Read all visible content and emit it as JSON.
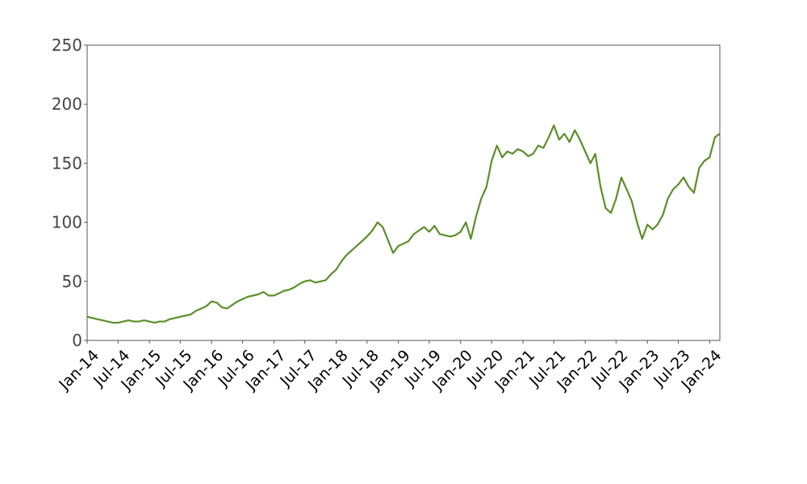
{
  "chart_data": {
    "type": "line",
    "title": "",
    "xlabel": "",
    "ylabel": "",
    "ylim": [
      0,
      250
    ],
    "yticks": [
      0,
      50,
      100,
      150,
      200,
      250
    ],
    "xlim": [
      "2014-01-01",
      "2024-03-01"
    ],
    "xticks": [
      {
        "date": "2014-01-01",
        "label": "Jan-14"
      },
      {
        "date": "2014-07-01",
        "label": "Jul-14"
      },
      {
        "date": "2015-01-01",
        "label": "Jan-15"
      },
      {
        "date": "2015-07-01",
        "label": "Jul-15"
      },
      {
        "date": "2016-01-01",
        "label": "Jan-16"
      },
      {
        "date": "2016-07-01",
        "label": "Jul-16"
      },
      {
        "date": "2017-01-01",
        "label": "Jan-17"
      },
      {
        "date": "2017-07-01",
        "label": "Jul-17"
      },
      {
        "date": "2018-01-01",
        "label": "Jan-18"
      },
      {
        "date": "2018-07-01",
        "label": "Jul-18"
      },
      {
        "date": "2019-01-01",
        "label": "Jan-19"
      },
      {
        "date": "2019-07-01",
        "label": "Jul-19"
      },
      {
        "date": "2020-01-01",
        "label": "Jan-20"
      },
      {
        "date": "2020-07-01",
        "label": "Jul-20"
      },
      {
        "date": "2021-01-01",
        "label": "Jan-21"
      },
      {
        "date": "2021-07-01",
        "label": "Jul-21"
      },
      {
        "date": "2022-01-01",
        "label": "Jan-22"
      },
      {
        "date": "2022-07-01",
        "label": "Jul-22"
      },
      {
        "date": "2023-01-01",
        "label": "Jan-23"
      },
      {
        "date": "2023-07-01",
        "label": "Jul-23"
      },
      {
        "date": "2024-01-01",
        "label": "Jan-24"
      }
    ],
    "grid": false,
    "legend": "none",
    "series": [
      {
        "color": "#5a8f29",
        "points": [
          [
            "2014-01-01",
            20
          ],
          [
            "2014-02-01",
            19
          ],
          [
            "2014-03-01",
            18
          ],
          [
            "2014-04-01",
            17
          ],
          [
            "2014-05-01",
            16
          ],
          [
            "2014-06-01",
            15
          ],
          [
            "2014-07-01",
            15
          ],
          [
            "2014-08-01",
            16
          ],
          [
            "2014-09-01",
            17
          ],
          [
            "2014-10-01",
            16
          ],
          [
            "2014-11-01",
            16
          ],
          [
            "2014-12-01",
            17
          ],
          [
            "2015-01-01",
            16
          ],
          [
            "2015-02-01",
            15
          ],
          [
            "2015-03-01",
            16
          ],
          [
            "2015-04-01",
            16
          ],
          [
            "2015-05-01",
            18
          ],
          [
            "2015-06-01",
            19
          ],
          [
            "2015-07-01",
            20
          ],
          [
            "2015-08-01",
            21
          ],
          [
            "2015-09-01",
            22
          ],
          [
            "2015-10-01",
            25
          ],
          [
            "2015-11-01",
            27
          ],
          [
            "2015-12-01",
            29
          ],
          [
            "2016-01-01",
            33
          ],
          [
            "2016-02-01",
            32
          ],
          [
            "2016-03-01",
            28
          ],
          [
            "2016-04-01",
            27
          ],
          [
            "2016-05-01",
            30
          ],
          [
            "2016-06-01",
            33
          ],
          [
            "2016-07-01",
            35
          ],
          [
            "2016-08-01",
            37
          ],
          [
            "2016-09-01",
            38
          ],
          [
            "2016-10-01",
            39
          ],
          [
            "2016-11-01",
            41
          ],
          [
            "2016-12-01",
            38
          ],
          [
            "2017-01-01",
            38
          ],
          [
            "2017-02-01",
            40
          ],
          [
            "2017-03-01",
            42
          ],
          [
            "2017-04-01",
            43
          ],
          [
            "2017-05-01",
            45
          ],
          [
            "2017-06-01",
            48
          ],
          [
            "2017-07-01",
            50
          ],
          [
            "2017-08-01",
            51
          ],
          [
            "2017-09-01",
            49
          ],
          [
            "2017-10-01",
            50
          ],
          [
            "2017-11-01",
            51
          ],
          [
            "2017-12-01",
            56
          ],
          [
            "2018-01-01",
            60
          ],
          [
            "2018-02-01",
            67
          ],
          [
            "2018-03-01",
            72
          ],
          [
            "2018-04-01",
            76
          ],
          [
            "2018-05-01",
            80
          ],
          [
            "2018-06-01",
            84
          ],
          [
            "2018-07-01",
            88
          ],
          [
            "2018-08-01",
            93
          ],
          [
            "2018-09-01",
            100
          ],
          [
            "2018-10-01",
            96
          ],
          [
            "2018-11-01",
            85
          ],
          [
            "2018-12-01",
            74
          ],
          [
            "2019-01-01",
            80
          ],
          [
            "2019-02-01",
            82
          ],
          [
            "2019-03-01",
            84
          ],
          [
            "2019-04-01",
            90
          ],
          [
            "2019-05-01",
            93
          ],
          [
            "2019-06-01",
            96
          ],
          [
            "2019-07-01",
            92
          ],
          [
            "2019-08-01",
            97
          ],
          [
            "2019-09-01",
            90
          ],
          [
            "2019-10-01",
            89
          ],
          [
            "2019-11-01",
            88
          ],
          [
            "2019-12-01",
            89
          ],
          [
            "2020-01-01",
            92
          ],
          [
            "2020-02-01",
            100
          ],
          [
            "2020-03-01",
            86
          ],
          [
            "2020-04-01",
            105
          ],
          [
            "2020-05-01",
            120
          ],
          [
            "2020-06-01",
            130
          ],
          [
            "2020-07-01",
            152
          ],
          [
            "2020-08-01",
            165
          ],
          [
            "2020-09-01",
            155
          ],
          [
            "2020-10-01",
            160
          ],
          [
            "2020-11-01",
            158
          ],
          [
            "2020-12-01",
            162
          ],
          [
            "2021-01-01",
            160
          ],
          [
            "2021-02-01",
            156
          ],
          [
            "2021-03-01",
            158
          ],
          [
            "2021-04-01",
            165
          ],
          [
            "2021-05-01",
            163
          ],
          [
            "2021-06-01",
            172
          ],
          [
            "2021-07-01",
            182
          ],
          [
            "2021-08-01",
            170
          ],
          [
            "2021-09-01",
            175
          ],
          [
            "2021-10-01",
            168
          ],
          [
            "2021-11-01",
            178
          ],
          [
            "2021-12-01",
            170
          ],
          [
            "2022-01-01",
            160
          ],
          [
            "2022-02-01",
            150
          ],
          [
            "2022-03-01",
            158
          ],
          [
            "2022-04-01",
            130
          ],
          [
            "2022-05-01",
            112
          ],
          [
            "2022-06-01",
            108
          ],
          [
            "2022-07-01",
            120
          ],
          [
            "2022-08-01",
            138
          ],
          [
            "2022-09-01",
            128
          ],
          [
            "2022-10-01",
            118
          ],
          [
            "2022-11-01",
            100
          ],
          [
            "2022-12-01",
            86
          ],
          [
            "2023-01-01",
            98
          ],
          [
            "2023-02-01",
            94
          ],
          [
            "2023-03-01",
            98
          ],
          [
            "2023-04-01",
            106
          ],
          [
            "2023-05-01",
            120
          ],
          [
            "2023-06-01",
            128
          ],
          [
            "2023-07-01",
            132
          ],
          [
            "2023-08-01",
            138
          ],
          [
            "2023-09-01",
            130
          ],
          [
            "2023-10-01",
            125
          ],
          [
            "2023-11-01",
            146
          ],
          [
            "2023-12-01",
            152
          ],
          [
            "2024-01-01",
            155
          ],
          [
            "2024-02-01",
            172
          ],
          [
            "2024-03-01",
            175
          ]
        ]
      }
    ]
  }
}
